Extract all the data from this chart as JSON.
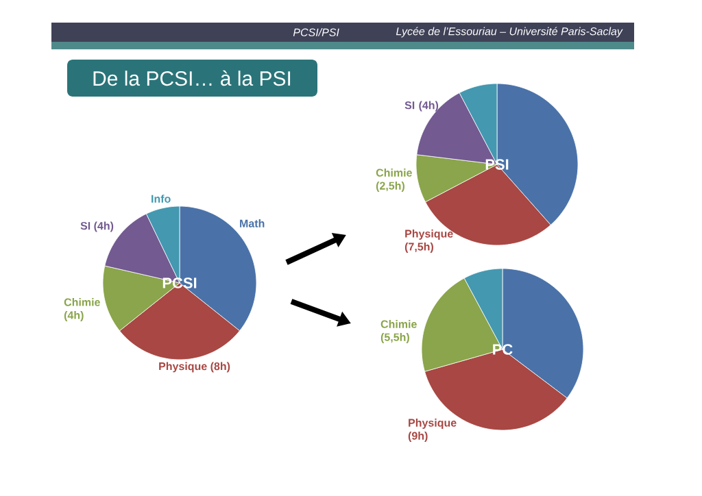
{
  "chart_data": [
    {
      "type": "pie",
      "title": "PCSI",
      "categories": [
        "Math",
        "Physique (8h)",
        "Chimie (4h)",
        "SI (4h)",
        "Info"
      ],
      "values": [
        10,
        8,
        4,
        4,
        2
      ],
      "colors": [
        "#4a72a8",
        "#a84743",
        "#8aa54b",
        "#735a91",
        "#4498b0"
      ],
      "annotations": [
        "PCSI/PSI",
        "Lycée de l’Essouriau – Université Paris-Saclay",
        "De la PCSI… à la PSI"
      ]
    },
    {
      "type": "pie",
      "title": "PSI",
      "categories": [
        null,
        "Physique (7,5h)",
        "Chimie (2,5h)",
        "SI (4h)",
        null
      ],
      "values": [
        10,
        7.5,
        2.5,
        4,
        2
      ],
      "colors": [
        "#4a72a8",
        "#a84743",
        "#8aa54b",
        "#735a91",
        "#4498b0"
      ]
    },
    {
      "type": "pie",
      "title": "PC",
      "categories": [
        null,
        "Physique (9h)",
        "Chimie (5,5h)",
        null
      ],
      "values": [
        9,
        9,
        5.5,
        2
      ],
      "colors": [
        "#4a72a8",
        "#a84743",
        "#8aa54b",
        "#4498b0"
      ]
    }
  ]
}
